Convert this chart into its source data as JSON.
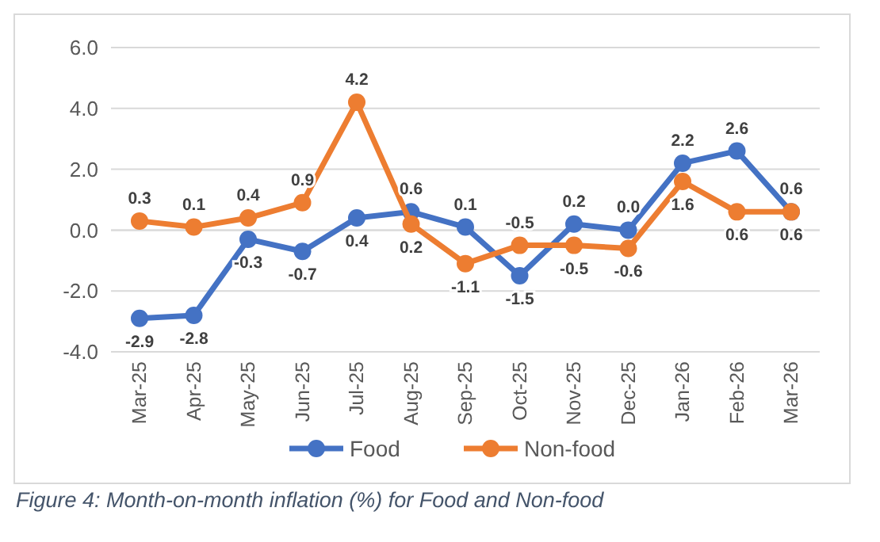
{
  "chart_data": {
    "type": "line",
    "categories": [
      "Mar-25",
      "Apr-25",
      "May-25",
      "Jun-25",
      "Jul-25",
      "Aug-25",
      "Sep-25",
      "Oct-25",
      "Nov-25",
      "Dec-25",
      "Jan-26",
      "Feb-26",
      "Mar-26"
    ],
    "series": [
      {
        "name": "Food",
        "color": "#4472c4",
        "values": [
          -2.9,
          -2.8,
          -0.3,
          -0.7,
          0.4,
          0.6,
          0.1,
          -1.5,
          0.2,
          0.0,
          2.2,
          2.6,
          0.6
        ],
        "value_labels": [
          "-2.9",
          "-2.8",
          "-0.3",
          "-0.7",
          "0.4",
          "0.6",
          "0.1",
          "-1.5",
          "0.2",
          "0.0",
          "2.2",
          "2.6",
          "0.6"
        ]
      },
      {
        "name": "Non-food",
        "color": "#ed7d31",
        "values": [
          0.3,
          0.1,
          0.4,
          0.9,
          4.2,
          0.2,
          -1.1,
          -0.5,
          -0.5,
          -0.6,
          1.6,
          0.6,
          0.6
        ],
        "value_labels": [
          "0.3",
          "0.1",
          "0.4",
          "0.9",
          "4.2",
          "0.2",
          "-1.1",
          "-0.5",
          "-0.5",
          "-0.6",
          "1.6",
          "0.6",
          "0.6"
        ]
      }
    ],
    "ylim": [
      -4,
      6
    ],
    "yticks": [
      {
        "value": -4,
        "label": "-4.0"
      },
      {
        "value": -2,
        "label": "-2.0"
      },
      {
        "value": 0,
        "label": "0.0"
      },
      {
        "value": 2,
        "label": "2.0"
      },
      {
        "value": 4,
        "label": "4.0"
      },
      {
        "value": 6,
        "label": "6.0"
      }
    ],
    "grid": "y",
    "legend": "bottom",
    "marker": "circle",
    "line_style": "solid",
    "annotations": [
      "Figure 4: Month-on-month inflation (%) for Food and Non-food"
    ]
  }
}
